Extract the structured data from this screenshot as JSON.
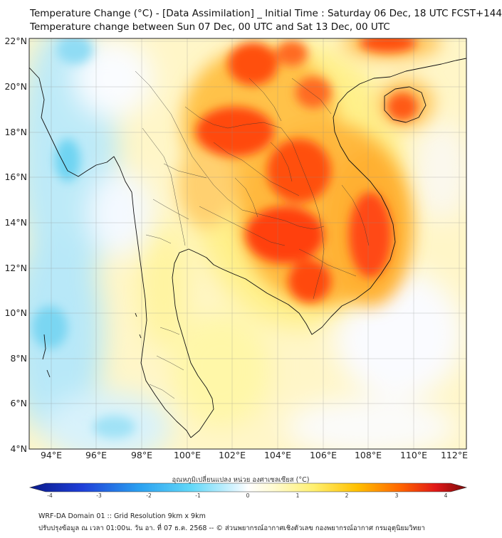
{
  "title_line1": "Temperature Change (°C) - [Data Assimilation] _ Initial Time : Saturday 06 Dec, 18 UTC FCST+144",
  "title_line2": "Temperature change between Sun 07 Dec, 00 UTC and Sat 13 Dec, 00 UTC",
  "lat_labels": [
    "22°N",
    "20°N",
    "18°N",
    "16°N",
    "14°N",
    "12°N",
    "10°N",
    "8°N",
    "6°N",
    "4°N"
  ],
  "lon_labels": [
    "94°E",
    "96°E",
    "98°E",
    "100°E",
    "102°E",
    "104°E",
    "106°E",
    "108°E",
    "110°E",
    "112°E"
  ],
  "colorbar": {
    "label": "อุณหภูมิเปลี่ยนแปลง หน่วย องศาเซลเซียส (°C)",
    "ticks": [
      "-4",
      "-3",
      "-2",
      "-1",
      "0",
      "1",
      "2",
      "3",
      "4"
    ],
    "range": [
      -4,
      4
    ]
  },
  "footer_line1": "WRF-DA Domain 01 :: Grid Resolution 9km x 9km",
  "footer_line2": "ปรับปรุงข้อมูล ณ เวลา 01:00น. วัน อา. ที่ 07 ธ.ค. 2568 -- © ส่วนพยากรณ์อากาศเชิงตัวเลข กองพยากรณ์อากาศ กรมอุตุนิยมวิทยา",
  "colors": {
    "cold_light": "#8fe0f5",
    "cold": "#3cc3ee",
    "neutral": "#f8f8ff",
    "warm_light": "#fff4a0",
    "warm": "#ffb000",
    "hot": "#ff6000",
    "hottest": "#f01e10"
  }
}
